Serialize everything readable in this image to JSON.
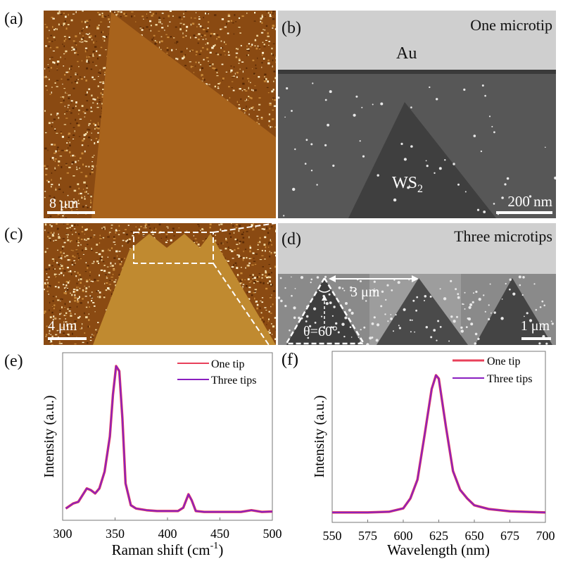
{
  "panels": {
    "a": {
      "label": "(a)",
      "scalebar": "8 μm"
    },
    "b": {
      "label": "(b)",
      "title": "One microtip",
      "top_label": "Au",
      "material_label": "WS",
      "material_sub": "2",
      "scalebar": "200 nm"
    },
    "c": {
      "label": "(c)",
      "scalebar": "4 μm"
    },
    "d": {
      "label": "(d)",
      "title": "Three microtips",
      "spacing_label": "3 μm",
      "angle_label": "θ=60°",
      "scalebar": "1 μm"
    },
    "e": {
      "label": "(e)"
    },
    "f": {
      "label": "(f)"
    }
  },
  "colors": {
    "one_tip": "#e8405a",
    "three_tips": "#8a1fc0",
    "afm": "#8a4a12",
    "sem_gray": "#cfcfcf"
  },
  "chart_data": [
    {
      "type": "line",
      "panel": "e",
      "xlabel": "Raman shift (cm",
      "xlabel_sup": "-1",
      "xlabel_end": ")",
      "ylabel": "Intensity (a.u.)",
      "xlim": [
        300,
        500
      ],
      "ylim": [
        0,
        1
      ],
      "xticks": [
        "300",
        "350",
        "400",
        "450",
        "500"
      ],
      "legend": "top-right",
      "x": [
        303,
        310,
        315,
        320,
        323,
        327,
        331,
        335,
        340,
        345,
        348,
        351,
        354,
        357,
        360,
        365,
        370,
        380,
        390,
        400,
        410,
        415,
        420,
        423,
        427,
        435,
        450,
        470,
        480,
        490,
        500
      ],
      "series": [
        {
          "name": "One tip",
          "y": [
            0.07,
            0.1,
            0.11,
            0.16,
            0.19,
            0.18,
            0.16,
            0.19,
            0.29,
            0.5,
            0.75,
            0.92,
            0.89,
            0.61,
            0.22,
            0.09,
            0.07,
            0.06,
            0.055,
            0.055,
            0.055,
            0.075,
            0.155,
            0.12,
            0.055,
            0.05,
            0.05,
            0.05,
            0.06,
            0.05,
            0.052
          ]
        },
        {
          "name": "Three tips",
          "y": [
            0.07,
            0.1,
            0.11,
            0.16,
            0.19,
            0.18,
            0.16,
            0.19,
            0.29,
            0.5,
            0.75,
            0.92,
            0.89,
            0.61,
            0.22,
            0.09,
            0.07,
            0.06,
            0.055,
            0.055,
            0.055,
            0.075,
            0.155,
            0.12,
            0.055,
            0.05,
            0.05,
            0.05,
            0.06,
            0.05,
            0.052
          ]
        }
      ]
    },
    {
      "type": "line",
      "panel": "f",
      "xlabel": "Wavelength (nm)",
      "ylabel": "Intensity (a.u.)",
      "xlim": [
        550,
        700
      ],
      "ylim": [
        0,
        1
      ],
      "xticks": [
        "550",
        "575",
        "600",
        "625",
        "650",
        "675",
        "700"
      ],
      "legend": "top-right",
      "x": [
        550,
        575,
        590,
        600,
        605,
        610,
        615,
        620,
        623,
        625,
        630,
        635,
        640,
        645,
        650,
        660,
        675,
        700
      ],
      "series": [
        {
          "name": "One tip",
          "y": [
            0.058,
            0.058,
            0.062,
            0.082,
            0.14,
            0.25,
            0.51,
            0.78,
            0.86,
            0.84,
            0.56,
            0.3,
            0.19,
            0.14,
            0.1,
            0.078,
            0.065,
            0.058
          ]
        },
        {
          "name": "Three tips",
          "y": [
            0.058,
            0.058,
            0.062,
            0.082,
            0.14,
            0.25,
            0.51,
            0.78,
            0.86,
            0.84,
            0.56,
            0.3,
            0.19,
            0.14,
            0.1,
            0.078,
            0.065,
            0.058
          ]
        }
      ]
    }
  ]
}
